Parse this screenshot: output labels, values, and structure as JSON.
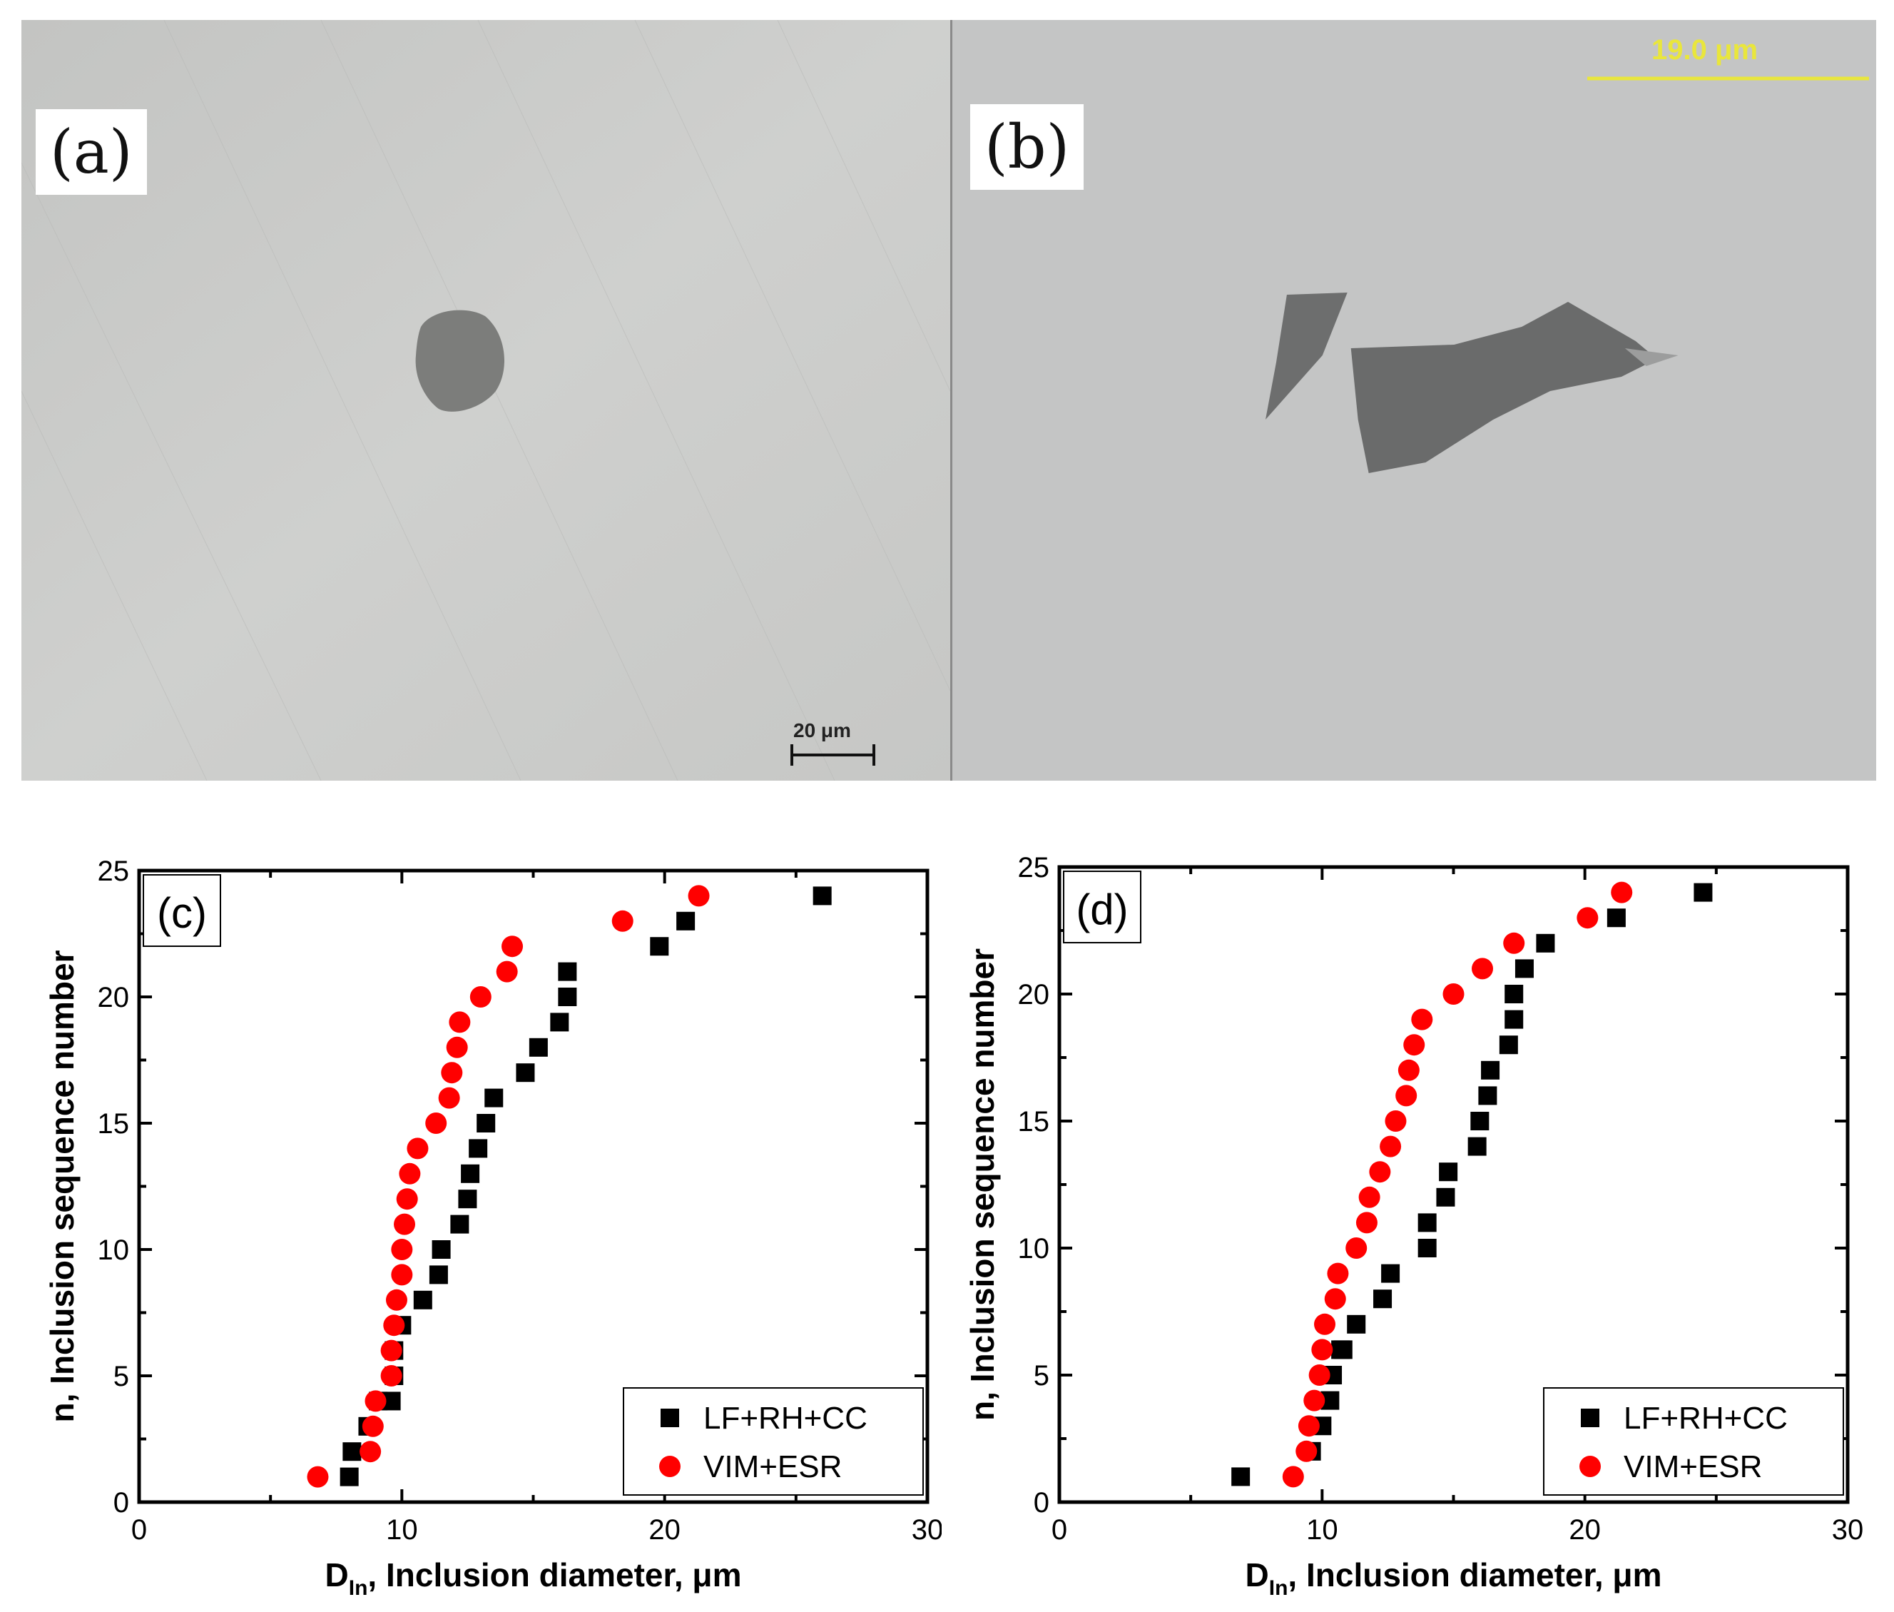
{
  "figure": {
    "panels": [
      {
        "id": "a",
        "label": "(a)",
        "scale_bar": "20 μm"
      },
      {
        "id": "b",
        "label": "(b)",
        "scale_bar": "19.0 μm"
      }
    ]
  },
  "chart_data": [
    {
      "type": "scatter",
      "panel_label": "(c)",
      "xlabel_main": "D",
      "xlabel_sub": "In",
      "xlabel_rest": ", Inclusion diameter, μm",
      "ylabel": "n, Inclusion sequence number",
      "xlim": [
        0,
        30
      ],
      "ylim": [
        0,
        25
      ],
      "xticks": [
        0,
        10,
        20,
        30
      ],
      "yticks": [
        0,
        5,
        10,
        15,
        20,
        25
      ],
      "legend_position": "bottom-right",
      "series": [
        {
          "name": "LF+RH+CC",
          "marker": "square",
          "color": "#000000",
          "x": [
            8.0,
            8.1,
            8.7,
            9.1,
            9.6,
            9.7,
            9.7,
            10.0,
            10.8,
            11.4,
            11.5,
            12.2,
            12.5,
            12.6,
            12.9,
            13.2,
            13.5,
            14.7,
            15.2,
            16.0,
            16.3,
            16.3,
            19.8,
            20.8,
            26.0
          ],
          "y": [
            1,
            2,
            3,
            4,
            4,
            5,
            6,
            7,
            8,
            9,
            10,
            11,
            12,
            13,
            14,
            15,
            16,
            17,
            18,
            19,
            20,
            21,
            22,
            23,
            24
          ]
        },
        {
          "name": "VIM+ESR",
          "marker": "circle",
          "color": "#ff0000",
          "x": [
            6.8,
            8.8,
            8.9,
            9.0,
            9.6,
            9.6,
            9.7,
            9.8,
            10.0,
            10.0,
            10.1,
            10.2,
            10.3,
            10.6,
            11.3,
            11.8,
            11.9,
            12.1,
            12.2,
            13.0,
            14.0,
            14.2,
            18.4,
            21.3
          ],
          "y": [
            1,
            2,
            3,
            4,
            5,
            6,
            7,
            8,
            9,
            10,
            11,
            12,
            13,
            14,
            15,
            16,
            17,
            18,
            19,
            20,
            21,
            22,
            23,
            24
          ]
        }
      ]
    },
    {
      "type": "scatter",
      "panel_label": "(d)",
      "xlabel_main": "D",
      "xlabel_sub": "In",
      "xlabel_rest": ", Inclusion diameter, μm",
      "ylabel": "n, Inclusion sequence number",
      "xlim": [
        0,
        30
      ],
      "ylim": [
        0,
        25
      ],
      "xticks": [
        0,
        10,
        20,
        30
      ],
      "yticks": [
        0,
        5,
        10,
        15,
        20,
        25
      ],
      "legend_position": "bottom-right",
      "series": [
        {
          "name": "LF+RH+CC",
          "marker": "square",
          "color": "#000000",
          "x": [
            6.9,
            9.6,
            10.0,
            10.3,
            10.4,
            10.7,
            10.8,
            11.3,
            12.3,
            12.6,
            14.0,
            14.0,
            14.7,
            14.8,
            15.9,
            16.0,
            16.3,
            16.4,
            17.1,
            17.3,
            17.3,
            17.7,
            18.5,
            21.2,
            24.5
          ],
          "y": [
            1,
            2,
            3,
            4,
            5,
            6,
            6,
            7,
            8,
            9,
            10,
            11,
            12,
            13,
            14,
            15,
            16,
            17,
            18,
            19,
            20,
            21,
            22,
            23,
            24
          ]
        },
        {
          "name": "VIM+ESR",
          "marker": "circle",
          "color": "#ff0000",
          "x": [
            8.9,
            9.4,
            9.5,
            9.7,
            9.9,
            10.0,
            10.1,
            10.5,
            10.6,
            11.3,
            11.7,
            11.8,
            12.2,
            12.6,
            12.8,
            13.2,
            13.3,
            13.5,
            13.8,
            15.0,
            16.1,
            17.3,
            20.1,
            21.4
          ],
          "y": [
            1,
            2,
            3,
            4,
            5,
            6,
            7,
            8,
            9,
            10,
            11,
            12,
            13,
            14,
            15,
            16,
            17,
            18,
            19,
            20,
            21,
            22,
            23,
            24
          ]
        }
      ]
    }
  ]
}
